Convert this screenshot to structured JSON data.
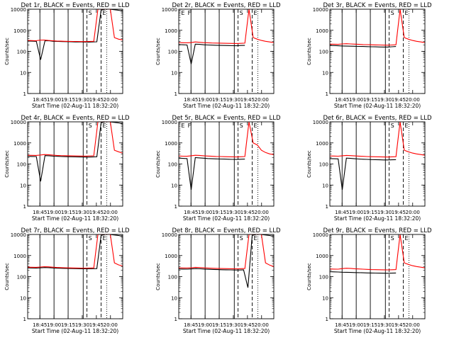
{
  "chart_data": [
    {
      "type": "line",
      "title": "Det 1r, BLACK = Events, RED = LLD",
      "ylabel": "Counts/sec",
      "xlabel": "Start Time (02-Aug-11 18:32:20)",
      "y_scale": "log",
      "ylim": [
        1,
        10000
      ],
      "y_ticks": [
        "1",
        "10",
        "100",
        "1000",
        "10000"
      ],
      "xlim": [
        "18:32",
        "20:13"
      ],
      "x_ticks": [
        "18:45",
        "19:00",
        "19:15",
        "19:30",
        "19:45",
        "20:00"
      ],
      "series": [
        {
          "color": "#000000",
          "values": [
            310,
            305,
            300,
            40,
            320,
            318,
            300,
            295,
            290,
            288,
            285,
            280,
            282,
            278,
            275,
            280,
            285,
            9000,
            10000,
            10000,
            9500,
            9000,
            8000
          ]
        },
        {
          "color": "#ff0000",
          "values": [
            330,
            325,
            320,
            340,
            345,
            330,
            320,
            310,
            305,
            300,
            298,
            295,
            296,
            292,
            290,
            295,
            300,
            10000,
            10000,
            10000,
            10000,
            450,
            380,
            350
          ]
        }
      ],
      "vlines_solid": [
        "18:45",
        "19:00",
        "19:15",
        "19:31"
      ],
      "vlines_dashed": [
        "19:35",
        "19:50"
      ],
      "vlines_dotted": [
        "19:56"
      ],
      "markers": [
        {
          "time": "19:35",
          "label": "S"
        },
        {
          "time": "19:50",
          "label": "E"
        }
      ]
    },
    {
      "type": "line",
      "title": "Det 2r, BLACK = Events, RED = LLD",
      "ylabel": "Counts/sec",
      "xlabel": "Start Time (02-Aug-11 18:32:20)",
      "y_scale": "log",
      "ylim": [
        1,
        10000
      ],
      "y_ticks": [
        "1",
        "10",
        "100",
        "1000",
        "10000"
      ],
      "xlim": [
        "18:32",
        "20:13"
      ],
      "x_ticks": [
        "18:45",
        "19:00",
        "19:15",
        "19:30",
        "19:45",
        "20:00"
      ],
      "series": [
        {
          "color": "#000000",
          "values": [
            210,
            205,
            200,
            25,
            220,
            215,
            205,
            200,
            198,
            195,
            192,
            190,
            188,
            186,
            185,
            190,
            192
          ]
        },
        {
          "color": "#ff0000",
          "values": [
            260,
            258,
            255,
            262,
            280,
            270,
            260,
            255,
            250,
            248,
            245,
            242,
            240,
            238,
            236,
            240,
            245,
            10000,
            450,
            380,
            330,
            300,
            280,
            260
          ]
        }
      ],
      "vlines_solid": [
        "18:45",
        "19:00",
        "19:15",
        "19:31"
      ],
      "vlines_dashed": [
        "19:35",
        "19:50"
      ],
      "vlines_dotted": [
        "19:56"
      ],
      "markers": [
        {
          "time": "18:33",
          "label": "E"
        },
        {
          "time": "18:40",
          "label": "F"
        },
        {
          "time": "19:35",
          "label": "S"
        },
        {
          "time": "19:50",
          "label": "E"
        }
      ]
    },
    {
      "type": "line",
      "title": "Det 3r, BLACK = Events, RED = LLD",
      "ylabel": "Counts/sec",
      "xlabel": "Start Time (02-Aug-11 18:32:20)",
      "y_scale": "log",
      "ylim": [
        1,
        10000
      ],
      "y_ticks": [
        "1",
        "10",
        "100",
        "1000",
        "10000"
      ],
      "xlim": [
        "18:32",
        "20:13"
      ],
      "x_ticks": [
        "18:45",
        "19:00",
        "19:15",
        "19:30",
        "19:45",
        "20:00"
      ],
      "series": [
        {
          "color": "#000000",
          "values": [
            190,
            188,
            185,
            180,
            178,
            176,
            175,
            172,
            170,
            168,
            165,
            164,
            162,
            160,
            160,
            165,
            170
          ]
        },
        {
          "color": "#ff0000",
          "values": [
            220,
            218,
            215,
            225,
            230,
            225,
            220,
            215,
            210,
            208,
            205,
            202,
            200,
            198,
            196,
            200,
            205,
            10000,
            450,
            380,
            330,
            300,
            280,
            260
          ]
        }
      ],
      "vlines_solid": [
        "18:45",
        "19:00",
        "19:15",
        "19:31"
      ],
      "vlines_dashed": [
        "19:35",
        "19:50"
      ],
      "vlines_dotted": [
        "19:56"
      ],
      "markers": [
        {
          "time": "19:35",
          "label": "S"
        },
        {
          "time": "19:50",
          "label": "E"
        }
      ]
    },
    {
      "type": "line",
      "title": "Det 4r, BLACK = Events, RED = LLD",
      "ylabel": "Counts/sec",
      "xlabel": "Start Time (02-Aug-11 18:32:20)",
      "y_scale": "log",
      "ylim": [
        1,
        10000
      ],
      "y_ticks": [
        "1",
        "10",
        "100",
        "1000",
        "10000"
      ],
      "xlim": [
        "18:32",
        "20:13"
      ],
      "x_ticks": [
        "18:45",
        "19:00",
        "19:15",
        "19:30",
        "19:45",
        "20:00"
      ],
      "series": [
        {
          "color": "#000000",
          "values": [
            230,
            228,
            225,
            15,
            250,
            245,
            235,
            230,
            225,
            222,
            220,
            218,
            216,
            214,
            212,
            215,
            220,
            9000,
            10000,
            10000,
            9500,
            9000,
            8000
          ]
        },
        {
          "color": "#ff0000",
          "values": [
            260,
            258,
            255,
            265,
            280,
            275,
            265,
            255,
            250,
            248,
            245,
            242,
            240,
            238,
            236,
            240,
            245,
            10000,
            10000,
            10000,
            10000,
            450,
            380,
            330
          ]
        }
      ],
      "vlines_solid": [
        "18:45",
        "19:00",
        "19:15",
        "19:31"
      ],
      "vlines_dashed": [
        "19:35",
        "19:50"
      ],
      "vlines_dotted": [
        "19:56"
      ],
      "markers": [
        {
          "time": "19:35",
          "label": "S"
        },
        {
          "time": "19:50",
          "label": "E"
        }
      ]
    },
    {
      "type": "line",
      "title": "Det 5r, BLACK = Events, RED = LLD",
      "ylabel": "Counts/sec",
      "xlabel": "Start Time (02-Aug-11 18:32:20)",
      "y_scale": "log",
      "ylim": [
        1,
        10000
      ],
      "y_ticks": [
        "1",
        "10",
        "100",
        "1000",
        "10000"
      ],
      "xlim": [
        "18:32",
        "20:13"
      ],
      "x_ticks": [
        "18:45",
        "19:00",
        "19:15",
        "19:30",
        "19:45",
        "20:00"
      ],
      "series": [
        {
          "color": "#000000",
          "values": [
            190,
            185,
            180,
            6,
            200,
            195,
            188,
            182,
            178,
            175,
            172,
            170,
            168,
            165,
            164,
            168,
            170
          ]
        },
        {
          "color": "#ff0000",
          "values": [
            240,
            235,
            232,
            245,
            260,
            255,
            245,
            238,
            232,
            228,
            225,
            222,
            220,
            218,
            216,
            220,
            225,
            10000,
            1000,
            800,
            450,
            350,
            300,
            280
          ]
        }
      ],
      "vlines_solid": [
        "18:45",
        "19:00",
        "19:15",
        "19:31"
      ],
      "vlines_dashed": [
        "19:35",
        "19:50"
      ],
      "vlines_dotted": [
        "19:56"
      ],
      "markers": [
        {
          "time": "18:33",
          "label": "E"
        },
        {
          "time": "18:40",
          "label": "F"
        },
        {
          "time": "19:35",
          "label": "S"
        },
        {
          "time": "19:50",
          "label": "E"
        }
      ]
    },
    {
      "type": "line",
      "title": "Det 6r, BLACK = Events, RED = LLD",
      "ylabel": "Counts/sec",
      "xlabel": "Start Time (02-Aug-11 18:32:20)",
      "y_scale": "log",
      "ylim": [
        1,
        10000
      ],
      "y_ticks": [
        "1",
        "10",
        "100",
        "1000",
        "10000"
      ],
      "xlim": [
        "18:32",
        "20:13"
      ],
      "x_ticks": [
        "18:45",
        "19:00",
        "19:15",
        "19:30",
        "19:45",
        "20:00"
      ],
      "series": [
        {
          "color": "#000000",
          "values": [
            180,
            178,
            175,
            6,
            190,
            185,
            178,
            172,
            168,
            165,
            162,
            160,
            158,
            156,
            155,
            158,
            160
          ]
        },
        {
          "color": "#ff0000",
          "values": [
            240,
            238,
            235,
            245,
            255,
            250,
            242,
            236,
            230,
            226,
            222,
            220,
            218,
            216,
            214,
            218,
            222,
            10000,
            450,
            380,
            330,
            300,
            280,
            260
          ]
        }
      ],
      "vlines_solid": [
        "18:45",
        "19:00",
        "19:15",
        "19:31"
      ],
      "vlines_dashed": [
        "19:35",
        "19:50"
      ],
      "vlines_dotted": [
        "19:56"
      ],
      "markers": [
        {
          "time": "19:35",
          "label": "S"
        },
        {
          "time": "19:50",
          "label": "E"
        }
      ]
    },
    {
      "type": "line",
      "title": "Det 7r, BLACK = Events, RED = LLD",
      "ylabel": "Counts/sec",
      "xlabel": "Start Time (02-Aug-11 18:32:20)",
      "y_scale": "log",
      "ylim": [
        1,
        10000
      ],
      "y_ticks": [
        "1",
        "10",
        "100",
        "1000",
        "10000"
      ],
      "xlim": [
        "18:32",
        "20:13"
      ],
      "x_ticks": [
        "18:45",
        "19:00",
        "19:15",
        "19:30",
        "19:45",
        "20:00"
      ],
      "series": [
        {
          "color": "#000000",
          "values": [
            260,
            258,
            255,
            262,
            270,
            265,
            258,
            252,
            248,
            245,
            242,
            240,
            238,
            236,
            235,
            238,
            240,
            9000,
            10000,
            10000,
            9500,
            9000,
            8000
          ]
        },
        {
          "color": "#ff0000",
          "values": [
            280,
            278,
            275,
            285,
            295,
            290,
            280,
            272,
            268,
            264,
            260,
            258,
            256,
            254,
            252,
            256,
            260,
            10000,
            10000,
            10000,
            10000,
            450,
            360,
            320
          ]
        }
      ],
      "vlines_solid": [
        "18:45",
        "19:00",
        "19:15",
        "19:31"
      ],
      "vlines_dashed": [
        "19:35",
        "19:50"
      ],
      "vlines_dotted": [
        "19:56"
      ],
      "markers": [
        {
          "time": "19:35",
          "label": "S"
        },
        {
          "time": "19:50",
          "label": "E"
        }
      ]
    },
    {
      "type": "line",
      "title": "Det 8r, BLACK = Events, RED = LLD",
      "ylabel": "Counts/sec",
      "xlabel": "Start Time (02-Aug-11 18:32:20)",
      "y_scale": "log",
      "ylim": [
        1,
        10000
      ],
      "y_ticks": [
        "1",
        "10",
        "100",
        "1000",
        "10000"
      ],
      "xlim": [
        "18:32",
        "20:13"
      ],
      "x_ticks": [
        "18:45",
        "19:00",
        "19:15",
        "19:30",
        "19:45",
        "20:00"
      ],
      "series": [
        {
          "color": "#000000",
          "values": [
            230,
            228,
            225,
            232,
            240,
            235,
            228,
            222,
            218,
            215,
            212,
            210,
            208,
            206,
            205,
            208,
            30,
            9000,
            10000,
            10000,
            9500,
            9000,
            8000
          ]
        },
        {
          "color": "#ff0000",
          "values": [
            260,
            258,
            255,
            262,
            275,
            270,
            262,
            255,
            250,
            246,
            242,
            240,
            238,
            236,
            234,
            238,
            242,
            10000,
            10000,
            10000,
            10000,
            450,
            350,
            300
          ]
        }
      ],
      "vlines_solid": [
        "18:45",
        "19:00",
        "19:15",
        "19:31"
      ],
      "vlines_dashed": [
        "19:35",
        "19:50"
      ],
      "vlines_dotted": [
        "19:56"
      ],
      "markers": [
        {
          "time": "19:35",
          "label": "S"
        },
        {
          "time": "19:50",
          "label": "E"
        }
      ]
    },
    {
      "type": "line",
      "title": "Det 9r, BLACK = Events, RED = LLD",
      "ylabel": "Counts/sec",
      "xlabel": "Start Time (02-Aug-11 18:32:20)",
      "y_scale": "log",
      "ylim": [
        1,
        10000
      ],
      "y_ticks": [
        "1",
        "10",
        "100",
        "1000",
        "10000"
      ],
      "xlim": [
        "18:32",
        "20:13"
      ],
      "x_ticks": [
        "18:45",
        "19:00",
        "19:15",
        "19:30",
        "19:45",
        "20:00"
      ],
      "series": [
        {
          "color": "#000000",
          "values": [
            170,
            168,
            165,
            162,
            160,
            158,
            156,
            154,
            152,
            150,
            148,
            147,
            146,
            145,
            144,
            146,
            148
          ]
        },
        {
          "color": "#ff0000",
          "values": [
            230,
            228,
            225,
            240,
            250,
            245,
            236,
            230,
            225,
            220,
            216,
            214,
            212,
            210,
            208,
            212,
            216,
            10000,
            450,
            380,
            330,
            300,
            280,
            260
          ]
        }
      ],
      "vlines_solid": [
        "18:45",
        "19:00",
        "19:15",
        "19:31"
      ],
      "vlines_dashed": [
        "19:35",
        "19:50"
      ],
      "vlines_dotted": [
        "19:56"
      ],
      "markers": [
        {
          "time": "19:35",
          "label": "S"
        },
        {
          "time": "19:50",
          "label": "E"
        }
      ]
    }
  ]
}
